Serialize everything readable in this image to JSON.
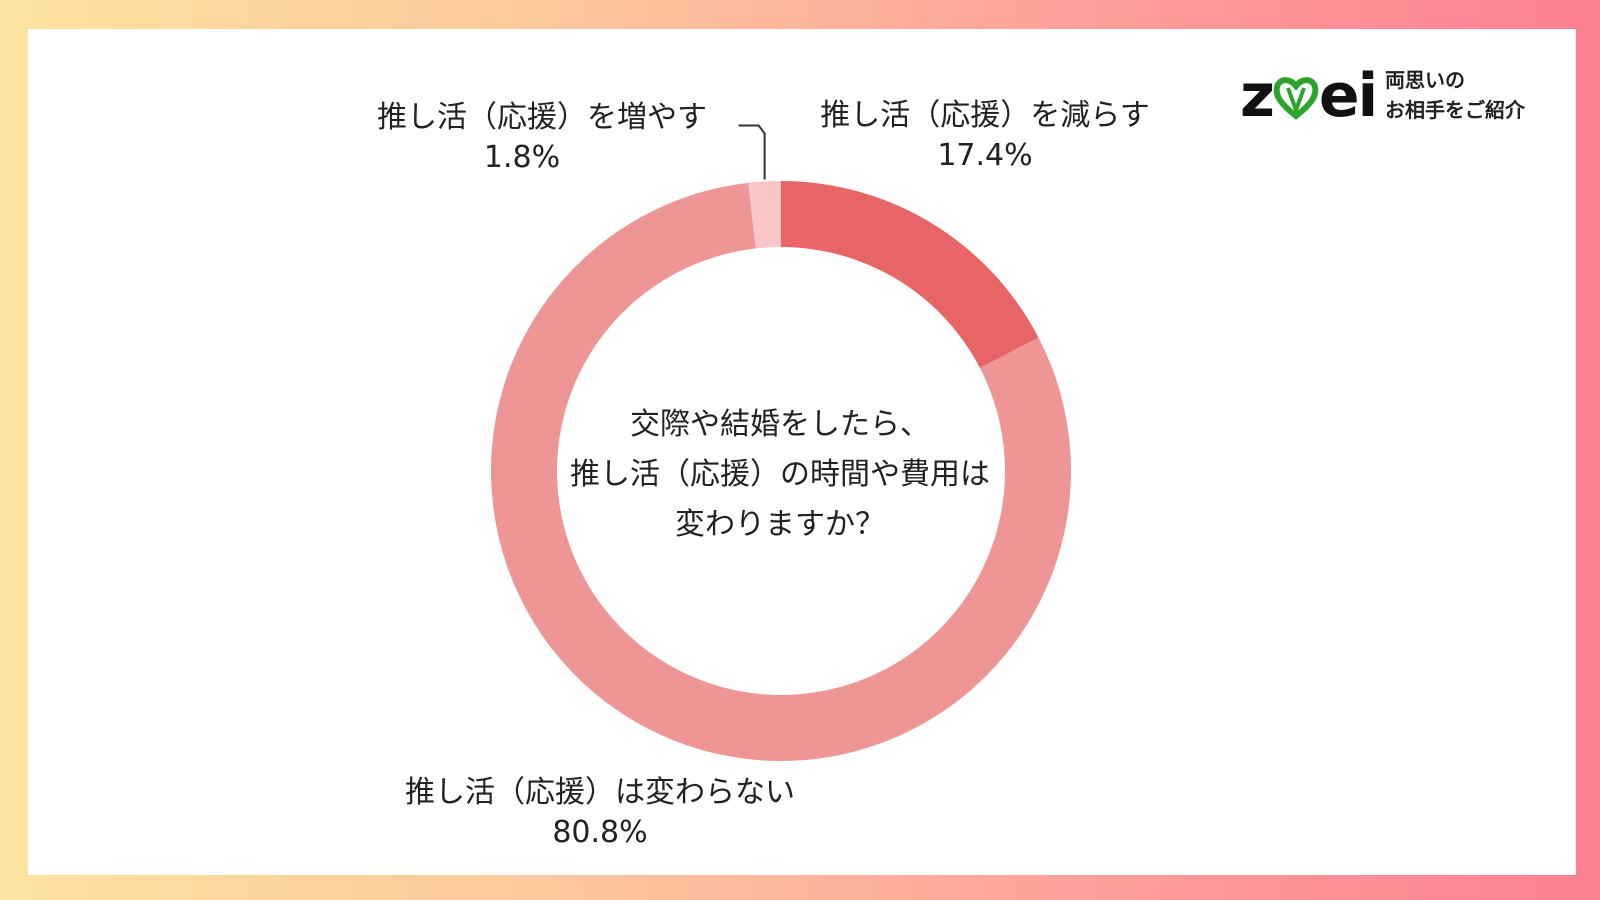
{
  "logo": {
    "word": "zwei",
    "tagline_1": "両思いの",
    "tagline_2": "お相手をご紹介",
    "heart_color": "#2aa52a"
  },
  "chart_data": {
    "type": "pie",
    "subtype": "donut",
    "center_text": [
      "交際や結婚をしたら、",
      "推し活（応援）の時間や費用は",
      "変わりますか？"
    ],
    "slices": [
      {
        "label": "推し活（応援）を減らす",
        "value": 17.4,
        "display": "17.4%",
        "color": "#e86567"
      },
      {
        "label": "推し活（応援）は変わらない",
        "value": 80.8,
        "display": "80.8%",
        "color": "#ee9595"
      },
      {
        "label": "推し活（応援）を増やす",
        "value": 1.8,
        "display": "1.8%",
        "color": "#f9c6c9"
      }
    ]
  }
}
